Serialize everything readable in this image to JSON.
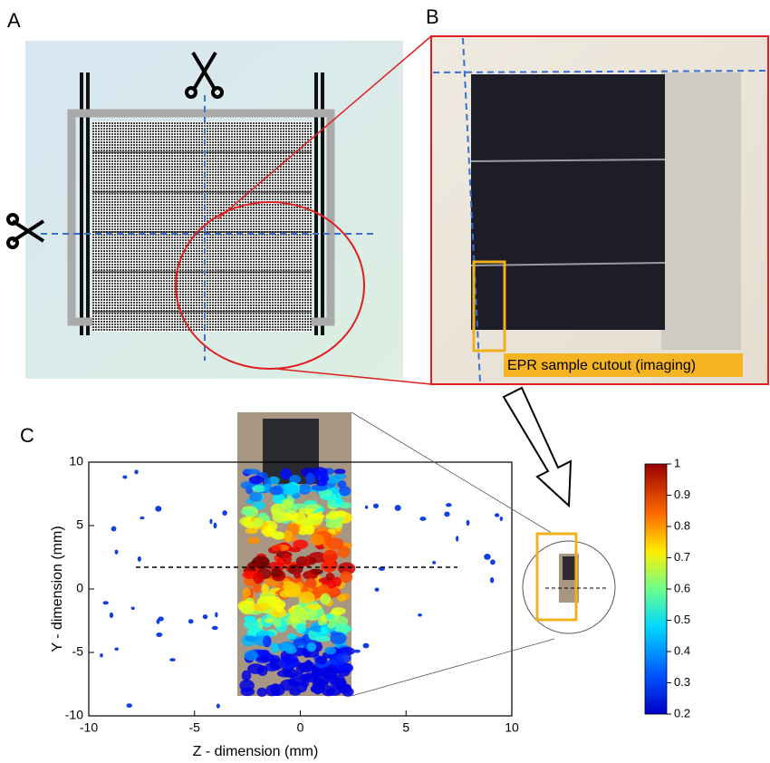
{
  "panels": {
    "a": "A",
    "b": "B",
    "c": "C"
  },
  "annotation": "EPR sample cutout (imaging)",
  "chart_data": {
    "type": "heatmap",
    "xlabel": "Z - dimension (mm)",
    "ylabel": "Y - dimension (mm)",
    "xlim": [
      -10,
      10
    ],
    "ylim": [
      -10,
      10
    ],
    "xticks": [
      -10,
      -5,
      0,
      5,
      10
    ],
    "yticks": [
      -10,
      -5,
      0,
      5,
      10
    ],
    "colorbar": {
      "lim": [
        0.2,
        1
      ],
      "ticks": [
        0.2,
        0.3,
        0.4,
        0.5,
        0.6,
        0.7,
        0.8,
        0.9,
        1
      ]
    }
  }
}
